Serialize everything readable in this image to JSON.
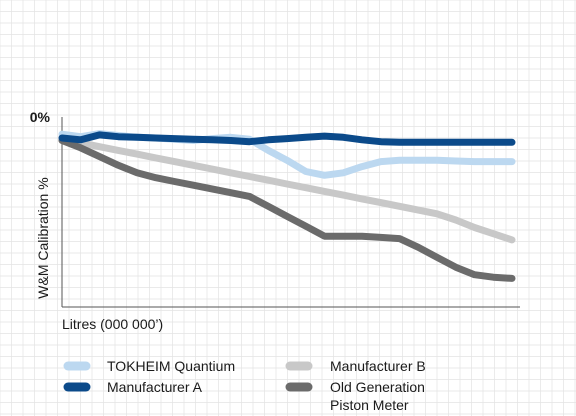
{
  "chart_data": {
    "type": "line",
    "title": "",
    "xlabel": "Litres (000 000’)",
    "ylabel": "W&M Calibration %",
    "y_tick_labels": [
      "0%"
    ],
    "grid": true,
    "legend_position": "bottom",
    "x": [
      0,
      0.5,
      1,
      1.5,
      2,
      2.5,
      3,
      3.5,
      4,
      4.5,
      5,
      5.5,
      6,
      6.5,
      7,
      7.5,
      8,
      8.5,
      9,
      9.5,
      10,
      10.5,
      11,
      11.5,
      12
    ],
    "series": [
      {
        "name": "TOKHEIM Quantium",
        "color": "#bcd8f0",
        "values": [
          -0.1,
          -0.3,
          -0.05,
          -0.2,
          -0.35,
          -0.4,
          -0.5,
          -0.6,
          -0.45,
          -0.35,
          -0.5,
          -1.4,
          -2.2,
          -3.1,
          -3.4,
          -3.2,
          -2.7,
          -2.3,
          -2.2,
          -2.2,
          -2.2,
          -2.25,
          -2.3,
          -2.3,
          -2.3
        ]
      },
      {
        "name": "Manufacturer A",
        "color": "#0b4a8a",
        "values": [
          -0.4,
          -0.55,
          -0.15,
          -0.3,
          -0.35,
          -0.4,
          -0.45,
          -0.5,
          -0.55,
          -0.6,
          -0.7,
          -0.55,
          -0.45,
          -0.35,
          -0.25,
          -0.35,
          -0.55,
          -0.7,
          -0.75,
          -0.75,
          -0.75,
          -0.75,
          -0.75,
          -0.75,
          -0.75
        ]
      },
      {
        "name": "Manufacturer B",
        "color": "#c8c8c8",
        "values": [
          -0.55,
          -0.8,
          -1.1,
          -1.4,
          -1.7,
          -2.0,
          -2.3,
          -2.6,
          -2.9,
          -3.2,
          -3.5,
          -3.8,
          -4.1,
          -4.4,
          -4.7,
          -5.0,
          -5.3,
          -5.6,
          -5.9,
          -6.2,
          -6.5,
          -7.0,
          -7.6,
          -8.1,
          -8.6
        ]
      },
      {
        "name": "Old Generation Piston Meter",
        "color": "#6b6b6b",
        "values": [
          -0.6,
          -1.2,
          -1.9,
          -2.6,
          -3.2,
          -3.6,
          -3.9,
          -4.2,
          -4.5,
          -4.8,
          -5.1,
          -5.9,
          -6.7,
          -7.5,
          -8.3,
          -8.3,
          -8.3,
          -8.4,
          -8.5,
          -9.2,
          -10.0,
          -10.8,
          -11.4,
          -11.6,
          -11.7
        ]
      }
    ],
    "xlim": [
      0,
      12
    ],
    "ylim": [
      -14,
      0
    ]
  },
  "legend": [
    {
      "id": "tokheim",
      "label": "TOKHEIM Quantium",
      "color": "#bcd8f0"
    },
    {
      "id": "mfr-a",
      "label": "Manufacturer A",
      "color": "#0b4a8a"
    },
    {
      "id": "mfr-b",
      "label": "Manufacturer B",
      "color": "#c8c8c8"
    },
    {
      "id": "old-gen",
      "label_line1": "Old Generation",
      "label_line2": "Piston Meter",
      "color": "#6b6b6b"
    }
  ]
}
